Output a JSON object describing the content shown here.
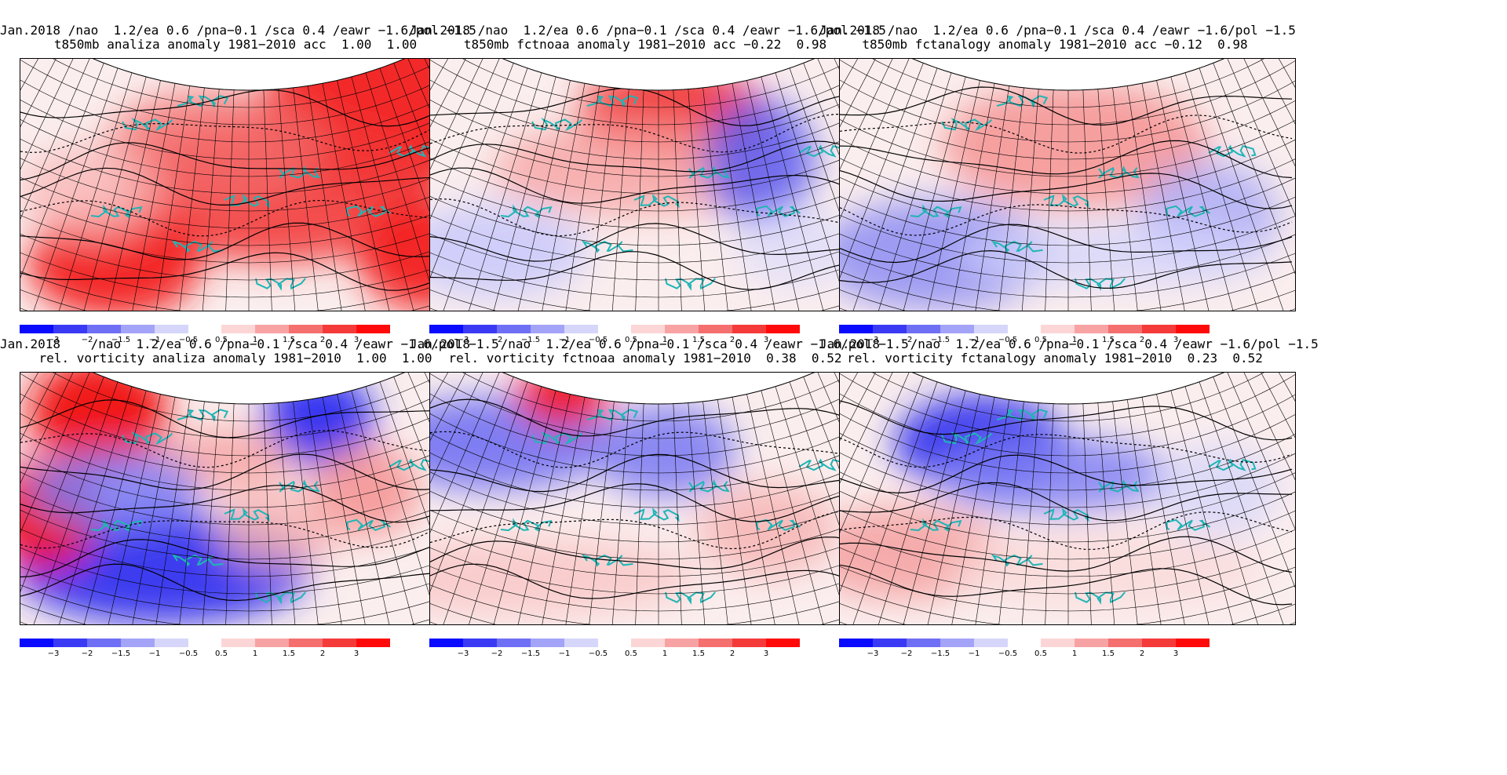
{
  "panels": [
    {
      "title1": "Jan.2018 /nao  1.2/ea 0.6 /pna−0.1 /sca 0.4 /eawr −1.6/pol −1.5",
      "title2": "t850mb analiza anomaly 1981−2010 acc  1.00  1.00",
      "field": "t850-analiza"
    },
    {
      "title1": "Jan.2018 /nao  1.2/ea 0.6 /pna−0.1 /sca 0.4 /eawr −1.6/pol −1.5",
      "title2": "t850mb fctnoaa anomaly 1981−2010 acc −0.22  0.98",
      "field": "t850-fctnoaa"
    },
    {
      "title1": "Jan.2018 /nao  1.2/ea 0.6 /pna−0.1 /sca 0.4 /eawr −1.6/pol −1.5",
      "title2": "t850mb fctanalogy anomaly 1981−2010 acc −0.12  0.98",
      "field": "t850-fctanalogy"
    },
    {
      "title1": "Jan.2018    /nao  1.2/ea 0.6 /pna−0.1 /sca 0.4 /eawr −1.6/pol −1.5",
      "title2": "rel. vorticity analiza anomaly 1981−2010  1.00  1.00",
      "field": "vort-analiza"
    },
    {
      "title1": "Jan.2018    /nao  1.2/ea 0.6 /pna−0.1 /sca 0.4 /eawr −1.6/pol −1.5",
      "title2": "rel. vorticity fctnoaa anomaly 1981−2010  0.38  0.52",
      "field": "vort-fctnoaa"
    },
    {
      "title1": "Jan.2018    /nao  1.2/ea 0.6 /pna−0.1 /sca 0.4 /eawr −1.6/pol −1.5",
      "title2": "rel. vorticity fctanalogy anomaly 1981−2010  0.23  0.52",
      "field": "vort-fctanalogy"
    }
  ],
  "colorbar": {
    "ticks": [
      "−3",
      "−2",
      "−1.5",
      "−1",
      "−0.5",
      "0.5",
      "1",
      "1.5",
      "2",
      "3"
    ],
    "colors": [
      "#0a0aff",
      "#3a3af5",
      "#6f6ff5",
      "#a3a3f8",
      "#d6d6fb",
      "#fcd6d6",
      "#f8a3a3",
      "#f56f6f",
      "#f53a3a",
      "#ff0a0a"
    ]
  }
}
